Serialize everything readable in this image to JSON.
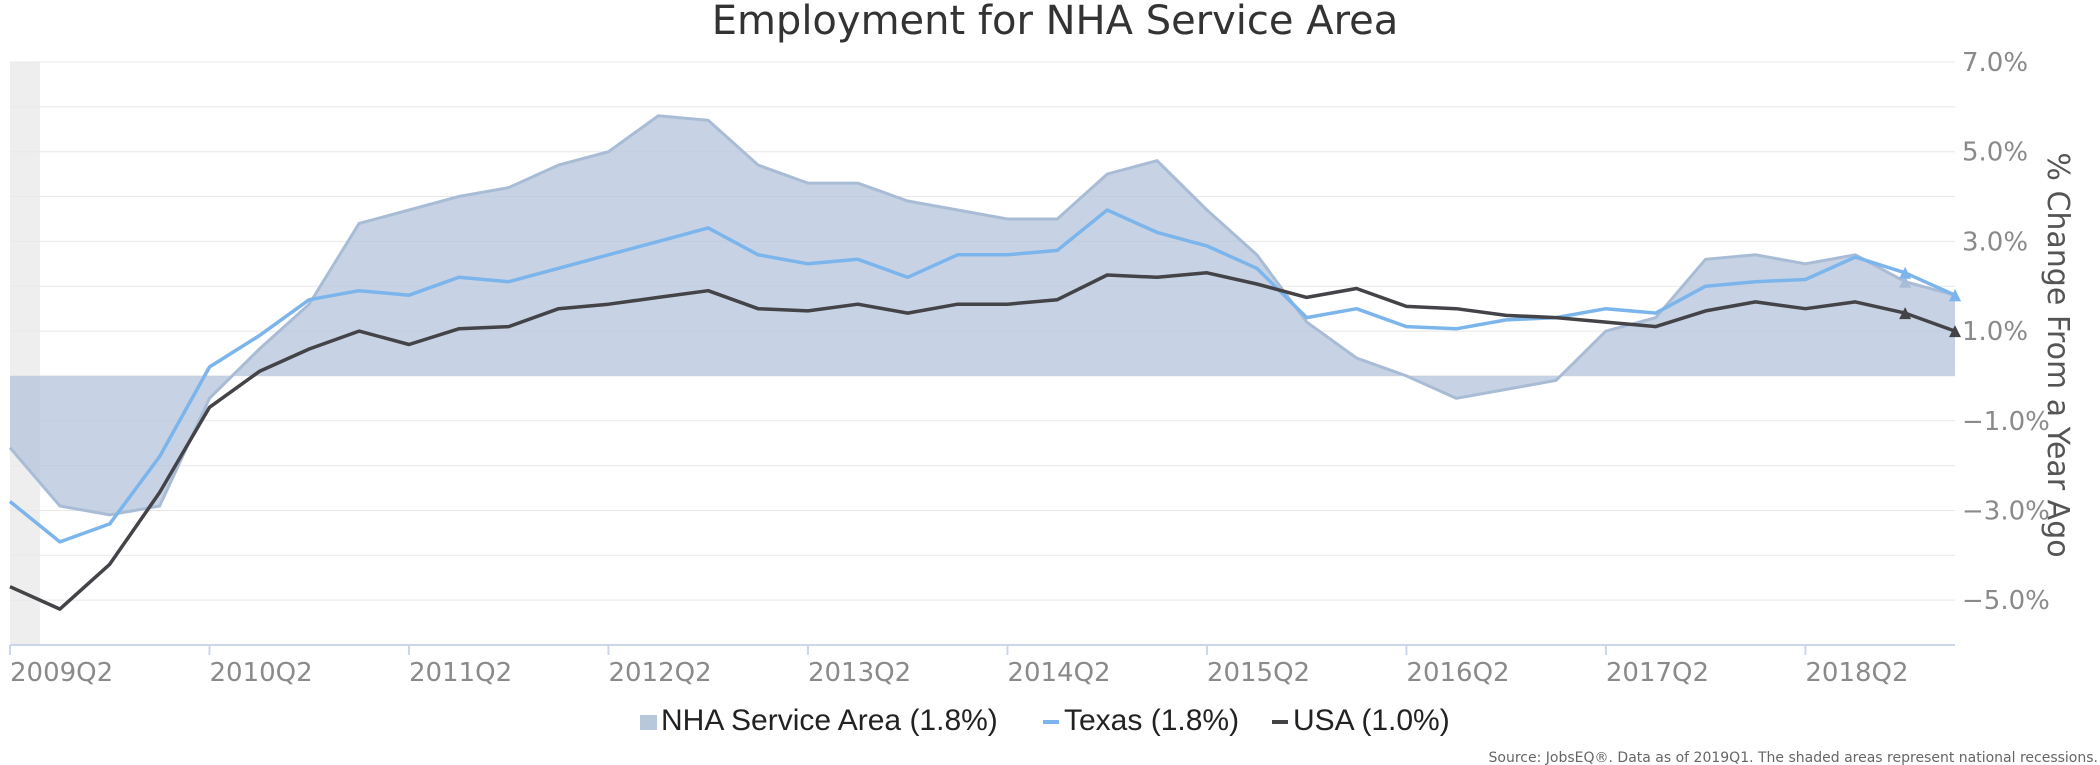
{
  "chart_data": {
    "type": "area+line",
    "title": "Employment for NHA Service Area",
    "ylabel": "% Change From a Year Ago",
    "ylim": [
      -6,
      7
    ],
    "yticks": [
      7,
      5,
      3,
      1,
      -1,
      -3,
      -5
    ],
    "ytick_labels": [
      "7.0%",
      "5.0%",
      "3.0%",
      "1.0%",
      "−1.0%",
      "−3.0%",
      "−5.0%"
    ],
    "xlim": [
      2009.25,
      2019.0
    ],
    "xticks": [
      2009.25,
      2010.25,
      2011.25,
      2012.25,
      2013.25,
      2014.25,
      2015.25,
      2016.25,
      2017.25,
      2018.25
    ],
    "xtick_labels": [
      "2009Q2",
      "2010Q2",
      "2011Q2",
      "2012Q2",
      "2013Q2",
      "2014Q2",
      "2015Q2",
      "2016Q2",
      "2017Q2",
      "2018Q2"
    ],
    "recessions": [
      [
        2009.25,
        2009.4
      ]
    ],
    "grid": "horizontal",
    "legend_position": "bottom-center",
    "x": [
      2009.25,
      2009.5,
      2009.75,
      2010.0,
      2010.25,
      2010.5,
      2010.75,
      2011.0,
      2011.25,
      2011.5,
      2011.75,
      2012.0,
      2012.25,
      2012.5,
      2012.75,
      2013.0,
      2013.25,
      2013.5,
      2013.75,
      2014.0,
      2014.25,
      2014.5,
      2014.75,
      2015.0,
      2015.25,
      2015.5,
      2015.75,
      2016.0,
      2016.25,
      2016.5,
      2016.75,
      2017.0,
      2017.25,
      2017.5,
      2017.75,
      2018.0,
      2018.25,
      2018.5,
      2018.75,
      2019.0
    ],
    "series": [
      {
        "name": "NHA Service Area (1.8%)",
        "type": "area",
        "color": "#b7c7dc",
        "values": [
          -1.6,
          -2.9,
          -3.1,
          -2.9,
          -0.5,
          0.6,
          1.6,
          3.4,
          3.7,
          4.0,
          4.2,
          4.7,
          5.0,
          5.8,
          5.7,
          4.7,
          4.3,
          4.3,
          3.9,
          3.7,
          3.5,
          3.5,
          4.5,
          4.8,
          3.7,
          2.7,
          1.2,
          0.4,
          0.0,
          -0.5,
          -0.3,
          -0.1,
          1.0,
          1.3,
          2.6,
          2.7,
          2.5,
          2.7,
          2.1,
          1.8
        ]
      },
      {
        "name": "Texas (1.8%)",
        "type": "line",
        "color": "#7cb5ec",
        "values": [
          -2.8,
          -3.7,
          -3.3,
          -1.8,
          0.2,
          0.9,
          1.7,
          1.9,
          1.8,
          2.2,
          2.1,
          2.4,
          2.7,
          3.0,
          3.3,
          2.7,
          2.5,
          2.6,
          2.2,
          2.7,
          2.7,
          2.8,
          3.7,
          3.2,
          2.9,
          2.4,
          1.3,
          1.5,
          1.1,
          1.05,
          1.25,
          1.3,
          1.5,
          1.4,
          2.0,
          2.1,
          2.15,
          2.65,
          2.3,
          1.8
        ]
      },
      {
        "name": "USA (1.0%)",
        "type": "line",
        "color": "#434348",
        "values": [
          -4.7,
          -5.2,
          -4.2,
          -2.6,
          -0.7,
          0.1,
          0.6,
          1.0,
          0.7,
          1.05,
          1.1,
          1.5,
          1.6,
          1.75,
          1.9,
          1.5,
          1.45,
          1.6,
          1.4,
          1.6,
          1.6,
          1.7,
          2.25,
          2.2,
          2.3,
          2.05,
          1.75,
          1.95,
          1.55,
          1.5,
          1.35,
          1.3,
          1.2,
          1.1,
          1.45,
          1.65,
          1.5,
          1.65,
          1.4,
          1.0
        ]
      }
    ],
    "source_note": "Source: JobsEQ®. Data as of 2019Q1. The shaded areas represent national recessions."
  }
}
